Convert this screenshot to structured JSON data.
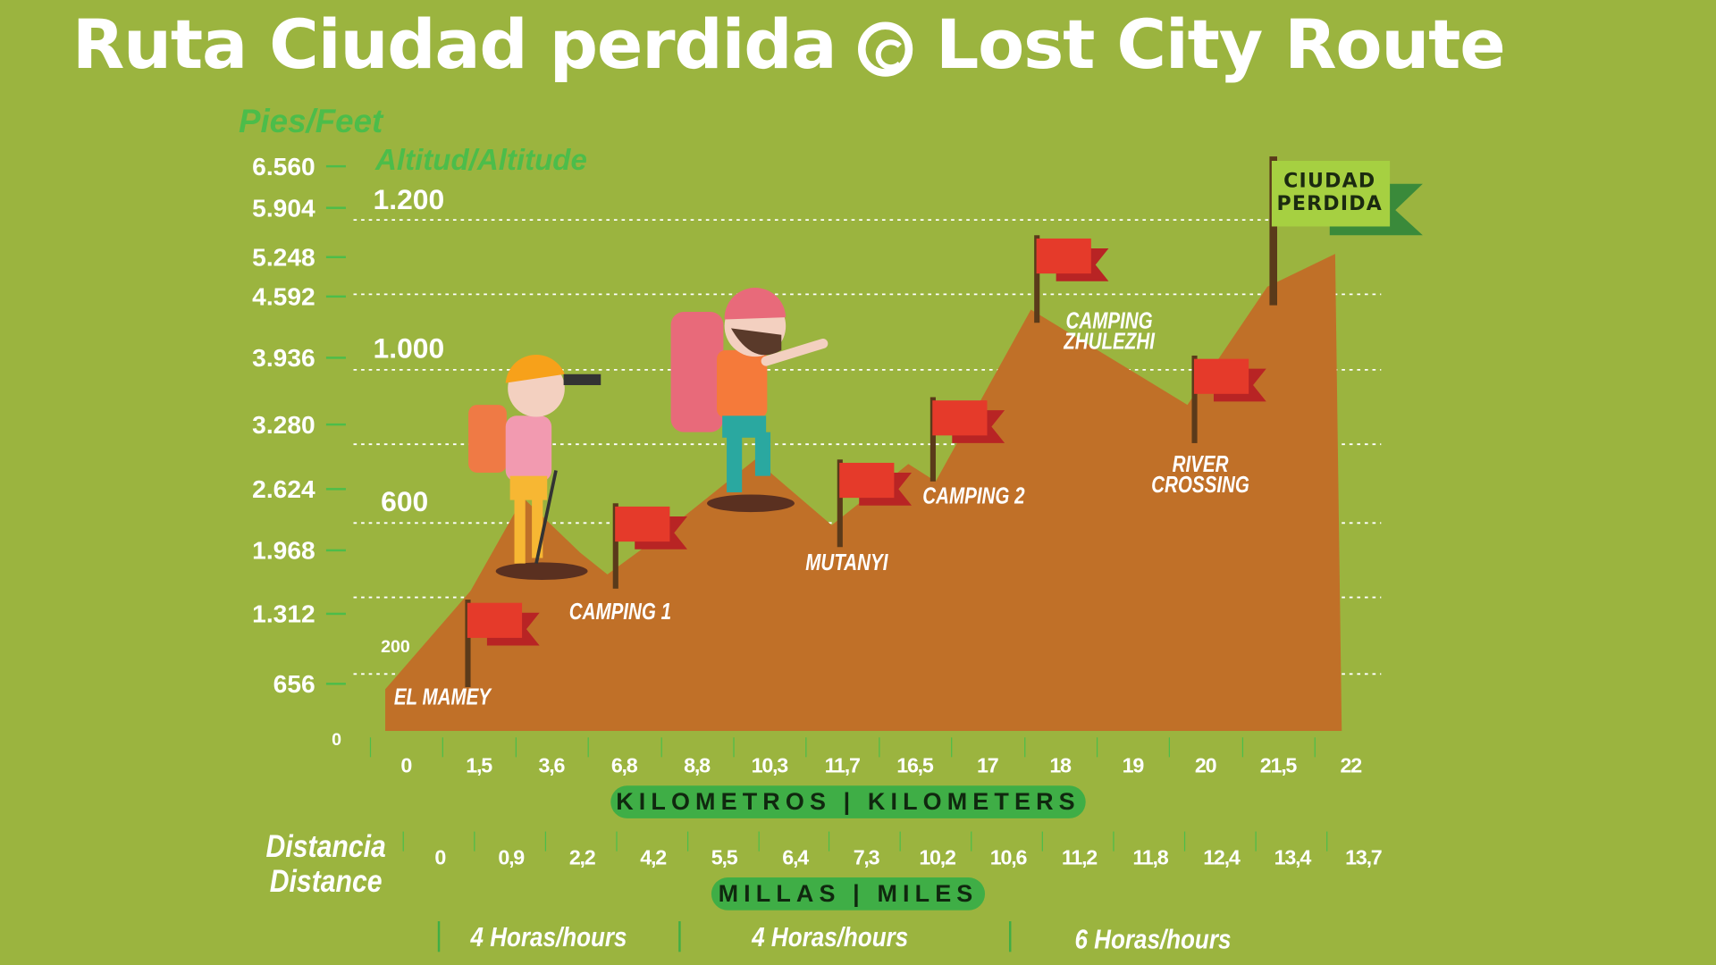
{
  "title": {
    "left": "Ruta Ciudad perdida",
    "right": "Lost City Route",
    "icon": "spiral-icon"
  },
  "chart_data": {
    "type": "area",
    "title": "Ruta Ciudad perdida / Lost City Route",
    "ylabel_feet": "Pies/Feet",
    "ylabel_meters": "Altitud/Altitude",
    "feet_ticks": [
      "6.560",
      "5.904",
      "5.248",
      "4.592",
      "3.936",
      "3.280",
      "2.624",
      "1.968",
      "1.312",
      "656",
      "0"
    ],
    "meter_ticks": [
      "1.200",
      "1.000",
      "600",
      "200"
    ],
    "xlabel_km": "KILOMETROS | KILOMETERS",
    "xlabel_miles": "MILLAS | MILES",
    "distance_label": [
      "Distancia",
      "Distance"
    ],
    "km": [
      "0",
      "1,5",
      "3,6",
      "6,8",
      "8,8",
      "10,3",
      "11,7",
      "16,5",
      "17",
      "18",
      "19",
      "20",
      "21,5",
      "22"
    ],
    "miles": [
      "0",
      "0,9",
      "2,2",
      "4,2",
      "5,5",
      "6,4",
      "7,3",
      "10,2",
      "10,6",
      "11,2",
      "11,8",
      "12,4",
      "13,4",
      "13,7"
    ],
    "altitude_m": [
      150,
      330,
      680,
      430,
      560,
      700,
      500,
      720,
      680,
      1120,
      940,
      1050,
      1200,
      1240
    ],
    "ylim_m": [
      0,
      1300
    ],
    "waypoints": [
      {
        "name": "EL MAMEY"
      },
      {
        "name": "CAMPING 1"
      },
      {
        "name": "MUTANYI"
      },
      {
        "name": "CAMPING 2"
      },
      {
        "name": "CAMPING ZHULEZHI"
      },
      {
        "name": "RIVER CROSSING"
      },
      {
        "name": "CIUDAD PERDIDA"
      }
    ],
    "hours": [
      "4 Horas/hours",
      "4 Horas/hours",
      "6 Horas/hours"
    ]
  },
  "colors": {
    "bg": "#9bb43f",
    "mountain": "#c07028",
    "flag": "#e53a2a",
    "flag_dark": "#b82424",
    "accent": "#3fae46"
  }
}
